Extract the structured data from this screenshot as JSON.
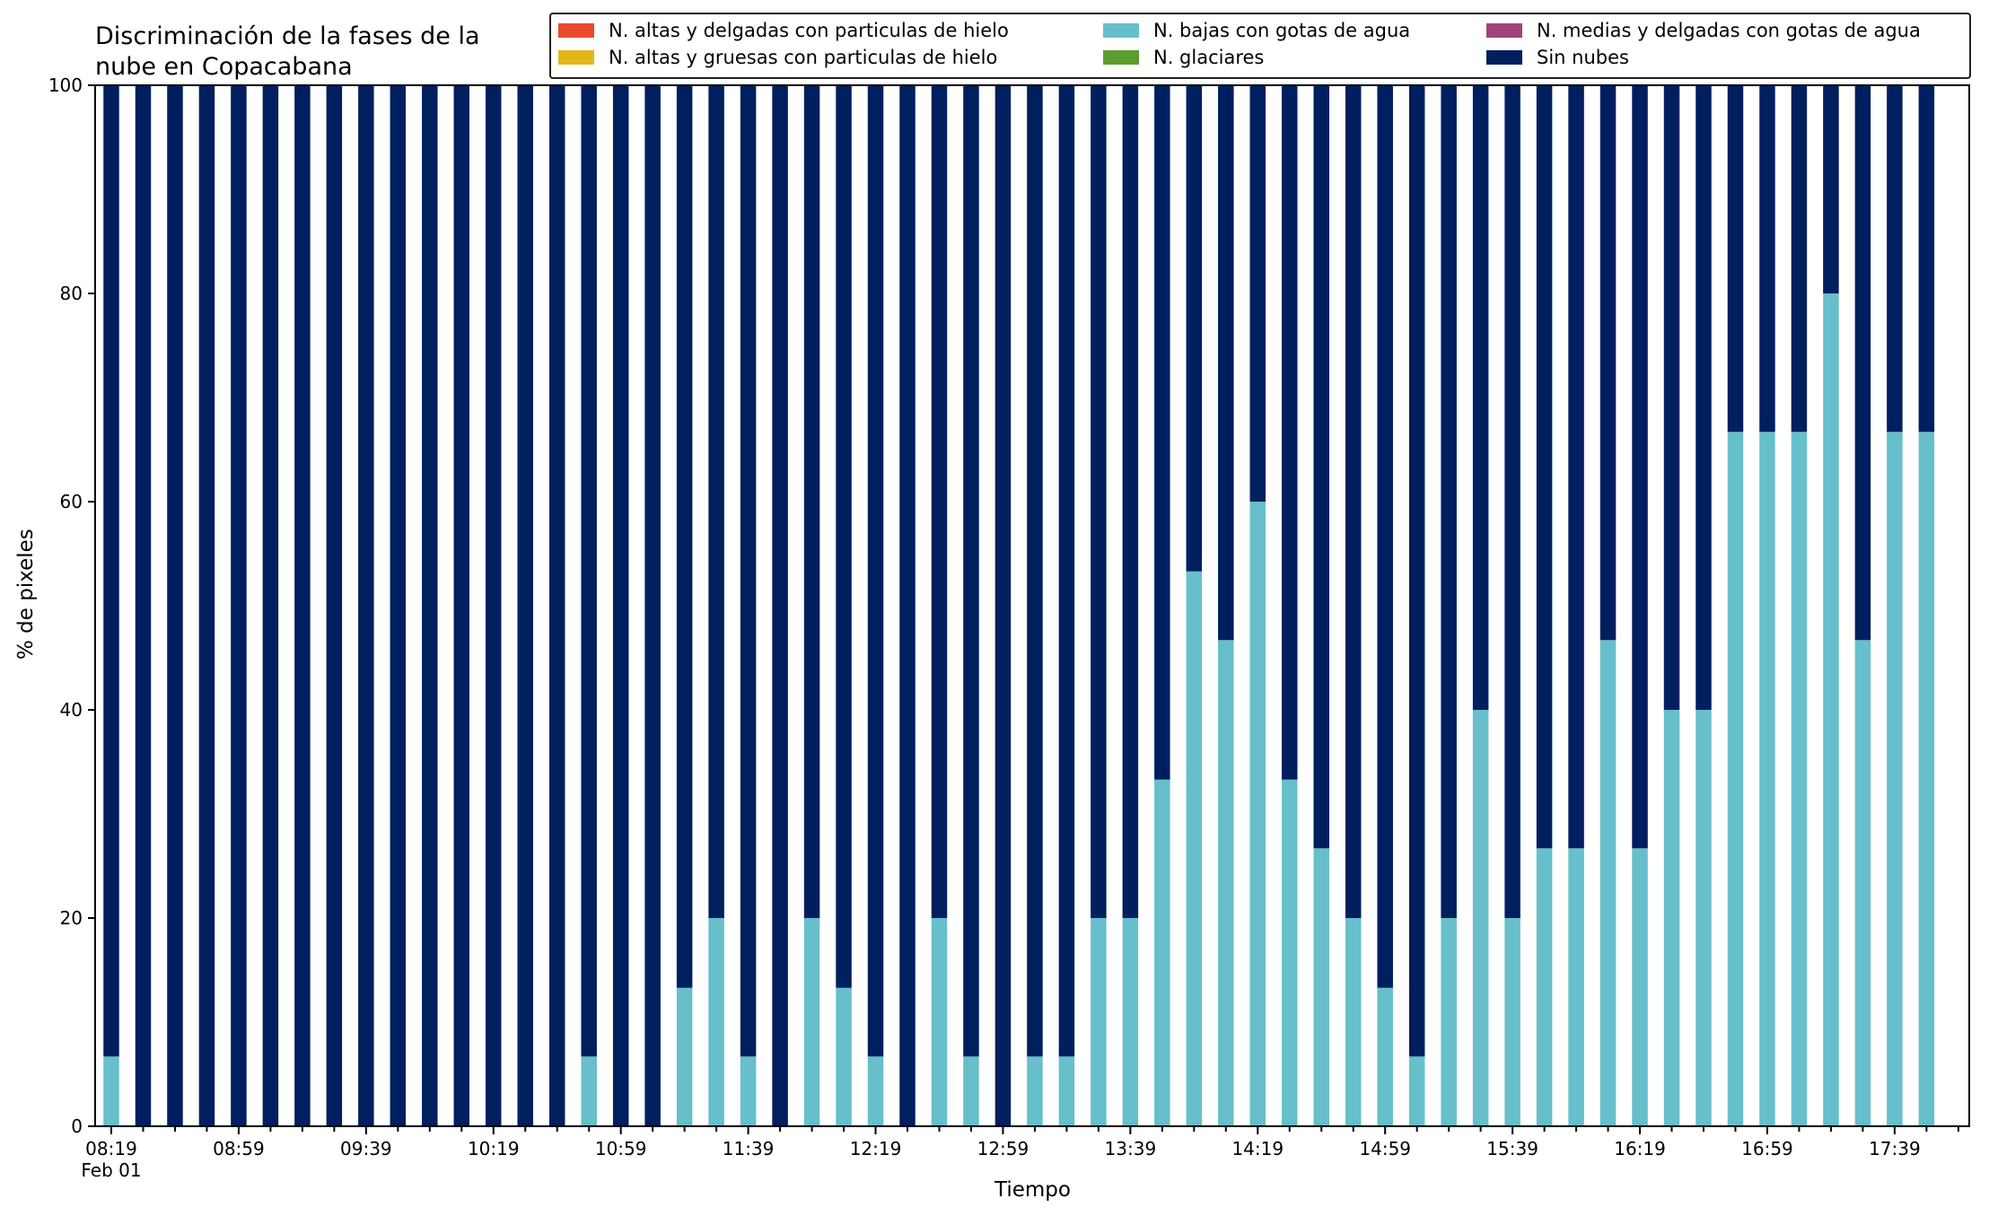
{
  "chart_data": {
    "type": "bar",
    "stacked": true,
    "title": "Discriminación de la fases de la\nnube en Copacabana",
    "xlabel": "Tiempo",
    "ylabel": "% de pixeles",
    "ylim": [
      0,
      100
    ],
    "yticks": [
      0,
      20,
      40,
      60,
      80,
      100
    ],
    "xtick_labels": [
      "08:19",
      "08:59",
      "09:39",
      "10:19",
      "10:59",
      "11:39",
      "12:19",
      "12:59",
      "13:39",
      "14:19",
      "14:59",
      "15:39",
      "16:19",
      "16:59",
      "17:39"
    ],
    "date_label": "Feb 01",
    "legend_position": "top-right",
    "grid": false,
    "x": [
      "08:19",
      "08:29",
      "08:39",
      "08:49",
      "08:59",
      "09:09",
      "09:19",
      "09:29",
      "09:39",
      "09:49",
      "09:59",
      "10:09",
      "10:19",
      "10:29",
      "10:39",
      "10:49",
      "10:59",
      "11:09",
      "11:19",
      "11:29",
      "11:39",
      "11:49",
      "11:59",
      "12:09",
      "12:19",
      "12:29",
      "12:39",
      "12:49",
      "12:59",
      "13:09",
      "13:19",
      "13:29",
      "13:39",
      "13:49",
      "13:59",
      "14:09",
      "14:19",
      "14:29",
      "14:39",
      "14:49",
      "14:59",
      "15:09",
      "15:19",
      "15:29",
      "15:39",
      "15:49",
      "15:59",
      "16:09",
      "16:19",
      "16:29",
      "16:39",
      "16:49",
      "16:59",
      "17:09",
      "17:19",
      "17:29",
      "17:39",
      "17:49"
    ],
    "series": [
      {
        "name": "N. altas y delgadas con particulas de hielo",
        "color": "#e94a2c",
        "values": [
          0,
          0,
          0,
          0,
          0,
          0,
          0,
          0,
          0,
          0,
          0,
          0,
          0,
          0,
          0,
          0,
          0,
          0,
          0,
          0,
          0,
          0,
          0,
          0,
          0,
          0,
          0,
          0,
          0,
          0,
          0,
          0,
          0,
          0,
          0,
          0,
          0,
          0,
          0,
          0,
          0,
          0,
          0,
          0,
          0,
          0,
          0,
          0,
          0,
          0,
          0,
          0,
          0,
          0,
          0,
          0,
          0,
          0
        ]
      },
      {
        "name": "N. altas y gruesas con particulas de hielo",
        "color": "#e3b81a",
        "values": [
          0,
          0,
          0,
          0,
          0,
          0,
          0,
          0,
          0,
          0,
          0,
          0,
          0,
          0,
          0,
          0,
          0,
          0,
          0,
          0,
          0,
          0,
          0,
          0,
          0,
          0,
          0,
          0,
          0,
          0,
          0,
          0,
          0,
          0,
          0,
          0,
          0,
          0,
          0,
          0,
          0,
          0,
          0,
          0,
          0,
          0,
          0,
          0,
          0,
          0,
          0,
          0,
          0,
          0,
          0,
          0,
          0,
          0
        ]
      },
      {
        "name": "N. bajas con gotas de agua",
        "color": "#66bfca",
        "values": [
          6.7,
          0,
          0,
          0,
          0,
          0,
          0,
          0,
          0,
          0,
          0,
          0,
          0,
          0,
          0,
          6.7,
          0,
          0,
          13.3,
          20,
          6.7,
          0,
          20,
          13.3,
          6.7,
          0,
          20,
          6.7,
          0,
          6.7,
          6.7,
          20,
          20,
          33.3,
          53.3,
          46.7,
          60,
          33.3,
          26.7,
          20,
          13.3,
          6.7,
          20,
          40,
          20,
          26.7,
          26.7,
          46.7,
          26.7,
          40,
          40,
          66.7,
          66.7,
          66.7,
          80,
          46.7,
          66.7,
          66.7
        ]
      },
      {
        "name": "N. glaciares",
        "color": "#5c9d2e",
        "values": [
          0,
          0,
          0,
          0,
          0,
          0,
          0,
          0,
          0,
          0,
          0,
          0,
          0,
          0,
          0,
          0,
          0,
          0,
          0,
          0,
          0,
          0,
          0,
          0,
          0,
          0,
          0,
          0,
          0,
          0,
          0,
          0,
          0,
          0,
          0,
          0,
          0,
          0,
          0,
          0,
          0,
          0,
          0,
          0,
          0,
          0,
          0,
          0,
          0,
          0,
          0,
          0,
          0,
          0,
          0,
          0,
          0,
          0
        ]
      },
      {
        "name": "N. medias y delgadas con gotas de agua",
        "color": "#a2427a",
        "values": [
          0,
          0,
          0,
          0,
          0,
          0,
          0,
          0,
          0,
          0,
          0,
          0,
          0,
          0,
          0,
          0,
          0,
          0,
          0,
          0,
          0,
          0,
          0,
          0,
          0,
          0,
          0,
          0,
          0,
          0,
          0,
          0,
          0,
          0,
          0,
          0,
          0,
          0,
          0,
          0,
          0,
          0,
          0,
          0,
          0,
          0,
          0,
          0,
          0,
          0,
          0,
          0,
          0,
          0,
          0,
          0,
          0,
          0
        ]
      },
      {
        "name": "Sin nubes",
        "color": "#001f5f",
        "values": [
          93.3,
          100,
          100,
          100,
          100,
          100,
          100,
          100,
          100,
          100,
          100,
          100,
          100,
          100,
          100,
          93.3,
          100,
          100,
          86.7,
          80,
          93.3,
          100,
          80,
          86.7,
          93.3,
          100,
          80,
          93.3,
          100,
          93.3,
          93.3,
          80,
          80,
          66.7,
          46.7,
          53.3,
          40,
          66.7,
          73.3,
          80,
          86.7,
          93.3,
          80,
          60,
          80,
          73.3,
          73.3,
          53.3,
          73.3,
          60,
          60,
          33.3,
          33.3,
          33.3,
          20,
          53.3,
          33.3,
          33.3
        ]
      }
    ]
  }
}
